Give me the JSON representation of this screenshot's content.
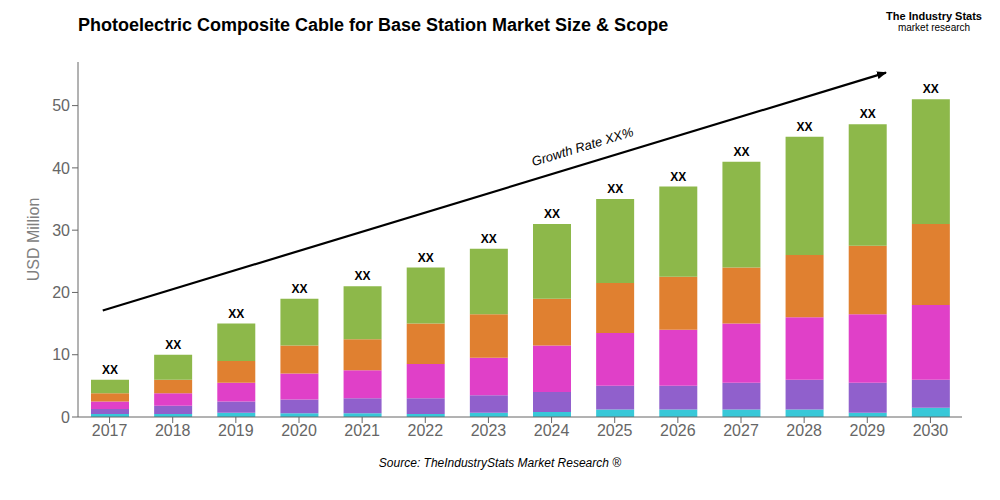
{
  "chart_data": {
    "type": "bar",
    "title": "Photoelectric Composite Cable for Base Station Market Size & Scope",
    "ylabel": "USD Million",
    "stacked": true,
    "categories": [
      "2017",
      "2018",
      "2019",
      "2020",
      "2021",
      "2022",
      "2023",
      "2024",
      "2025",
      "2026",
      "2027",
      "2028",
      "2029",
      "2030"
    ],
    "series": [
      {
        "color": "#38c8d8",
        "values": [
          0.5,
          0.5,
          0.7,
          0.6,
          0.6,
          0.5,
          0.7,
          0.8,
          1.2,
          1.2,
          1.2,
          1.2,
          0.7,
          1.5
        ]
      },
      {
        "color": "#9060cc",
        "values": [
          0.8,
          1.3,
          1.8,
          2.2,
          2.4,
          2.5,
          2.8,
          3.2,
          3.8,
          3.8,
          4.3,
          4.8,
          4.8,
          4.5
        ]
      },
      {
        "color": "#e040c8",
        "values": [
          1.2,
          2.0,
          3.0,
          4.2,
          4.5,
          5.5,
          6.0,
          7.5,
          8.5,
          9.0,
          9.5,
          10.0,
          11.0,
          12.0
        ]
      },
      {
        "color": "#e08030",
        "values": [
          1.3,
          2.2,
          3.5,
          4.5,
          5.0,
          6.5,
          7.0,
          7.5,
          8.0,
          8.5,
          9.0,
          10.0,
          11.0,
          13.0
        ]
      },
      {
        "color": "#8db84a",
        "values": [
          2.2,
          4.0,
          6.0,
          7.5,
          8.5,
          9.0,
          10.5,
          12.0,
          13.5,
          14.5,
          17.0,
          19.0,
          19.5,
          20.0
        ]
      }
    ],
    "ylim": [
      0,
      57
    ],
    "yticks": [
      0,
      10,
      20,
      30,
      40,
      50
    ],
    "grid": false,
    "annotations": {
      "bar_label": "XX",
      "growth_label": "Growth Rate XX%",
      "source": "Source: TheIndustryStats Market Research ®",
      "logo": [
        "The Industry Stats",
        "market research"
      ]
    }
  }
}
